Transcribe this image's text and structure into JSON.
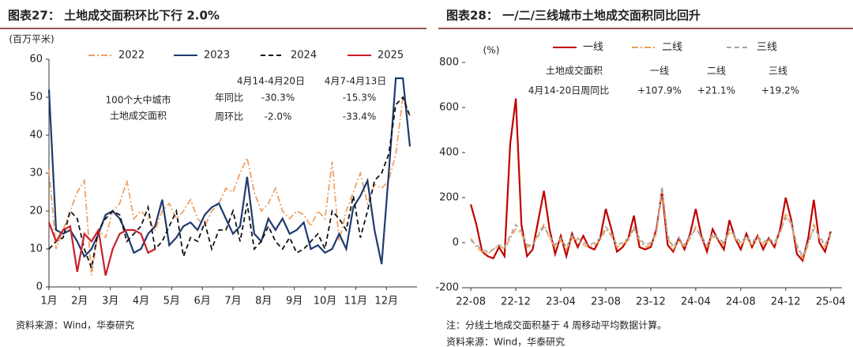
{
  "chart_data": [
    {
      "type": "line",
      "title": "图表27： 土地成交面积环比下行 2.0%",
      "ylabel": "(百万平米)",
      "x": [
        1,
        2,
        3,
        4,
        5,
        6,
        7,
        8,
        9,
        10,
        11,
        12,
        13,
        14,
        15,
        16,
        17,
        18,
        19,
        20,
        21,
        22,
        23,
        24,
        25,
        26,
        27,
        28,
        29,
        30,
        31,
        32,
        33,
        34,
        35,
        36,
        37,
        38,
        39,
        40,
        41,
        42,
        43,
        44,
        45,
        46,
        47,
        48,
        49,
        50,
        51,
        52
      ],
      "xlim": [
        1,
        53
      ],
      "xticks": [
        {
          "value": 1,
          "label": "1月"
        },
        {
          "value": 5.33,
          "label": "2月"
        },
        {
          "value": 9.67,
          "label": "3月"
        },
        {
          "value": 14,
          "label": "4月"
        },
        {
          "value": 18.33,
          "label": "5月"
        },
        {
          "value": 22.67,
          "label": "6月"
        },
        {
          "value": 27,
          "label": "7月"
        },
        {
          "value": 31.33,
          "label": "8月"
        },
        {
          "value": 35.67,
          "label": "9月"
        },
        {
          "value": 40,
          "label": "10月"
        },
        {
          "value": 44.33,
          "label": "11月"
        },
        {
          "value": 48.67,
          "label": "12月"
        }
      ],
      "ylim": [
        0,
        60
      ],
      "yticks": [
        0,
        10,
        20,
        30,
        40,
        50,
        60
      ],
      "legend": "top",
      "series": [
        {
          "name": "2022",
          "color": "#f0a064",
          "linestyle": "dashdot",
          "values": [
            31,
            10,
            15,
            20,
            25,
            28,
            3,
            15,
            13,
            20,
            22,
            28,
            18,
            20,
            18,
            15,
            20,
            22,
            18,
            20,
            23,
            18,
            16,
            20,
            22,
            26,
            25,
            30,
            34,
            25,
            20,
            22,
            26,
            20,
            18,
            20,
            19,
            16,
            20,
            18,
            33,
            12,
            20,
            25,
            30,
            22,
            27,
            26,
            28,
            35,
            50,
            45
          ]
        },
        {
          "name": "2023",
          "color": "#1f3a6e",
          "linestyle": "solid",
          "values": [
            52,
            15,
            14,
            15,
            12,
            8,
            10,
            14,
            19,
            20,
            18,
            14,
            9,
            10,
            14,
            16,
            23,
            11,
            13,
            16,
            17,
            15,
            19,
            21,
            22,
            18,
            14,
            16,
            29,
            14,
            12,
            18,
            15,
            18,
            14,
            15,
            17,
            10,
            11,
            9,
            10,
            14,
            10,
            21,
            24,
            28,
            15,
            6,
            30,
            55,
            55,
            37
          ]
        },
        {
          "name": "2024",
          "color": "#111111",
          "linestyle": "dashed",
          "values": [
            10,
            12,
            13,
            20,
            18,
            10,
            5,
            15,
            18,
            20,
            19,
            12,
            14,
            16,
            21,
            10,
            12,
            16,
            20,
            8,
            13,
            12,
            17,
            10,
            15,
            15,
            20,
            12,
            22,
            10,
            12,
            16,
            12,
            10,
            13,
            9,
            10,
            12,
            14,
            10,
            20,
            18,
            15,
            24,
            13,
            20,
            28,
            30,
            35,
            48,
            50,
            45
          ]
        },
        {
          "name": "2025",
          "color": "#c8202a",
          "linestyle": "solid",
          "values": [
            17,
            12,
            15,
            16,
            4,
            14,
            12,
            15,
            3,
            10,
            14,
            15,
            15,
            14,
            9,
            10,
            null,
            null,
            null,
            null,
            null,
            null,
            null,
            null,
            null,
            null,
            null,
            null,
            null,
            null,
            null,
            null,
            null,
            null,
            null,
            null,
            null,
            null,
            null,
            null,
            null,
            null,
            null,
            null,
            null,
            null,
            null,
            null,
            null,
            null,
            null,
            null
          ]
        }
      ],
      "annotations": [
        "4月14-4月20日",
        "4月7-4月13日",
        "100个大中城市",
        "土地成交面积",
        "年同比",
        "-30.3%",
        "-15.3%",
        "周环比",
        "-2.0%",
        "-33.4%"
      ],
      "source": "资料来源：Wind，华泰研究"
    },
    {
      "type": "line",
      "title": "图表28： 一/二/三线城市土地成交面积同比回升",
      "ylabel": "(%)",
      "x": [
        0,
        0.5,
        1,
        1.5,
        2,
        2.5,
        3,
        3.5,
        4,
        4.5,
        5,
        5.5,
        6,
        6.5,
        7,
        7.5,
        8,
        8.5,
        9,
        9.5,
        10,
        10.5,
        11,
        11.5,
        12,
        12.5,
        13,
        13.5,
        14,
        14.5,
        15,
        15.5,
        16,
        16.5,
        17,
        17.5,
        18,
        18.5,
        19,
        19.5,
        20,
        20.5,
        21,
        21.5,
        22,
        22.5,
        23,
        23.5,
        24,
        24.5,
        25,
        25.5,
        26,
        26.5,
        27,
        27.5,
        28,
        28.5,
        29,
        29.5,
        30,
        30.5,
        31,
        31.5,
        32
      ],
      "xlim": [
        -0.5,
        33
      ],
      "xticks": [
        {
          "value": 0,
          "label": "22-08"
        },
        {
          "value": 4,
          "label": "22-12"
        },
        {
          "value": 8,
          "label": "23-04"
        },
        {
          "value": 12,
          "label": "23-08"
        },
        {
          "value": 16,
          "label": "23-12"
        },
        {
          "value": 20,
          "label": "24-04"
        },
        {
          "value": 24,
          "label": "24-08"
        },
        {
          "value": 28,
          "label": "24-12"
        },
        {
          "value": 32,
          "label": "25-04"
        }
      ],
      "ylim": [
        -200,
        800
      ],
      "yticks": [
        -200,
        0,
        200,
        400,
        600,
        800
      ],
      "legend": "top",
      "series": [
        {
          "name": "一线",
          "color": "#c00000",
          "linestyle": "solid",
          "values": [
            170,
            80,
            -40,
            -60,
            -70,
            -20,
            -60,
            440,
            640,
            80,
            -60,
            -30,
            100,
            230,
            60,
            -50,
            30,
            -60,
            40,
            -20,
            30,
            -20,
            -30,
            20,
            150,
            60,
            -40,
            -20,
            20,
            120,
            -20,
            -30,
            -20,
            60,
            230,
            -10,
            -40,
            20,
            -30,
            40,
            150,
            30,
            -40,
            60,
            10,
            -30,
            100,
            20,
            -30,
            40,
            -20,
            30,
            -30,
            20,
            -20,
            60,
            200,
            100,
            -50,
            -80,
            20,
            190,
            0,
            -40,
            50
          ]
        },
        {
          "name": "二线",
          "color": "#f0a050",
          "linestyle": "dashdot",
          "values": [
            20,
            -20,
            -40,
            -50,
            -30,
            -10,
            -30,
            20,
            60,
            40,
            -20,
            -10,
            40,
            80,
            20,
            -20,
            10,
            -30,
            20,
            10,
            -10,
            -20,
            -10,
            10,
            60,
            30,
            -20,
            -10,
            10,
            60,
            10,
            -20,
            -10,
            40,
            240,
            20,
            -30,
            10,
            -20,
            20,
            70,
            20,
            -20,
            30,
            10,
            -10,
            50,
            20,
            -10,
            20,
            -10,
            20,
            -10,
            10,
            -10,
            40,
            130,
            80,
            -20,
            -70,
            -10,
            80,
            20,
            -20,
            30
          ]
        },
        {
          "name": "三线",
          "color": "#a6a6a6",
          "linestyle": "dashed",
          "values": [
            10,
            -10,
            -30,
            -40,
            -30,
            -10,
            -20,
            30,
            80,
            50,
            -10,
            -10,
            30,
            70,
            30,
            -10,
            20,
            -20,
            30,
            20,
            0,
            -10,
            0,
            20,
            70,
            40,
            -10,
            0,
            20,
            70,
            20,
            -10,
            0,
            50,
            250,
            30,
            -20,
            20,
            -10,
            30,
            60,
            30,
            -10,
            40,
            20,
            0,
            60,
            30,
            0,
            30,
            0,
            30,
            0,
            20,
            0,
            50,
            110,
            90,
            -10,
            -60,
            0,
            60,
            30,
            -10,
            40
          ]
        }
      ],
      "annotations": [
        "土地成交面积",
        "一线",
        "二线",
        "三线",
        "4月14-20日周同比",
        "+107.9%",
        "+21.1%",
        "+19.2%"
      ],
      "note": "注：分线土地成交面积基于 4 周移动平均数据计算。",
      "source": "资料来源：Wind，华泰研究"
    }
  ]
}
